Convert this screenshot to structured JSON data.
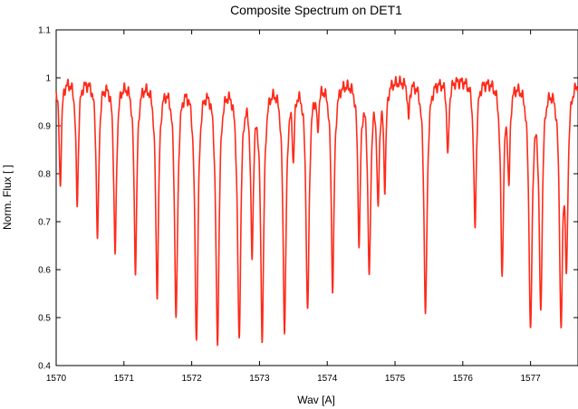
{
  "chart_data": {
    "type": "line",
    "title": "Composite Spectrum on DET1",
    "xlabel": "Wav [A]",
    "ylabel": "Norm. Flux [ ]",
    "xlim": [
      1570,
      1577.7
    ],
    "ylim": [
      0.4,
      1.1
    ],
    "xticks": [
      "1570",
      "1571",
      "1572",
      "1573",
      "1574",
      "1575",
      "1576",
      "1577"
    ],
    "yticks": [
      "0.4",
      "0.5",
      "0.6",
      "0.7",
      "0.8",
      "0.9",
      "1",
      "1.1"
    ],
    "grid": false,
    "legend": "none",
    "series": [
      {
        "color": "#ff2a1a",
        "continuum": 1.0,
        "absorption_lines": [
          {
            "x": 1570.06,
            "min": 0.78
          },
          {
            "x": 1570.31,
            "min": 0.74
          },
          {
            "x": 1570.61,
            "min": 0.67
          },
          {
            "x": 1570.87,
            "min": 0.64
          },
          {
            "x": 1571.17,
            "min": 0.61
          },
          {
            "x": 1571.49,
            "min": 0.56
          },
          {
            "x": 1571.77,
            "min": 0.51
          },
          {
            "x": 1572.07,
            "min": 0.47
          },
          {
            "x": 1572.38,
            "min": 0.46
          },
          {
            "x": 1572.7,
            "min": 0.47
          },
          {
            "x": 1572.89,
            "min": 0.66
          },
          {
            "x": 1573.04,
            "min": 0.48
          },
          {
            "x": 1573.37,
            "min": 0.49
          },
          {
            "x": 1573.5,
            "min": 0.86
          },
          {
            "x": 1573.71,
            "min": 0.52
          },
          {
            "x": 1573.86,
            "min": 0.91
          },
          {
            "x": 1574.08,
            "min": 0.57
          },
          {
            "x": 1574.47,
            "min": 0.67
          },
          {
            "x": 1574.62,
            "min": 0.6
          },
          {
            "x": 1574.75,
            "min": 0.75
          },
          {
            "x": 1574.85,
            "min": 0.79
          },
          {
            "x": 1575.2,
            "min": 0.92
          },
          {
            "x": 1575.45,
            "min": 0.51
          },
          {
            "x": 1575.78,
            "min": 0.84
          },
          {
            "x": 1576.18,
            "min": 0.69
          },
          {
            "x": 1576.58,
            "min": 0.6
          },
          {
            "x": 1576.68,
            "min": 0.8
          },
          {
            "x": 1577.0,
            "min": 0.49
          },
          {
            "x": 1577.15,
            "min": 0.53
          },
          {
            "x": 1577.45,
            "min": 0.51
          },
          {
            "x": 1577.53,
            "min": 0.64
          }
        ]
      }
    ]
  }
}
